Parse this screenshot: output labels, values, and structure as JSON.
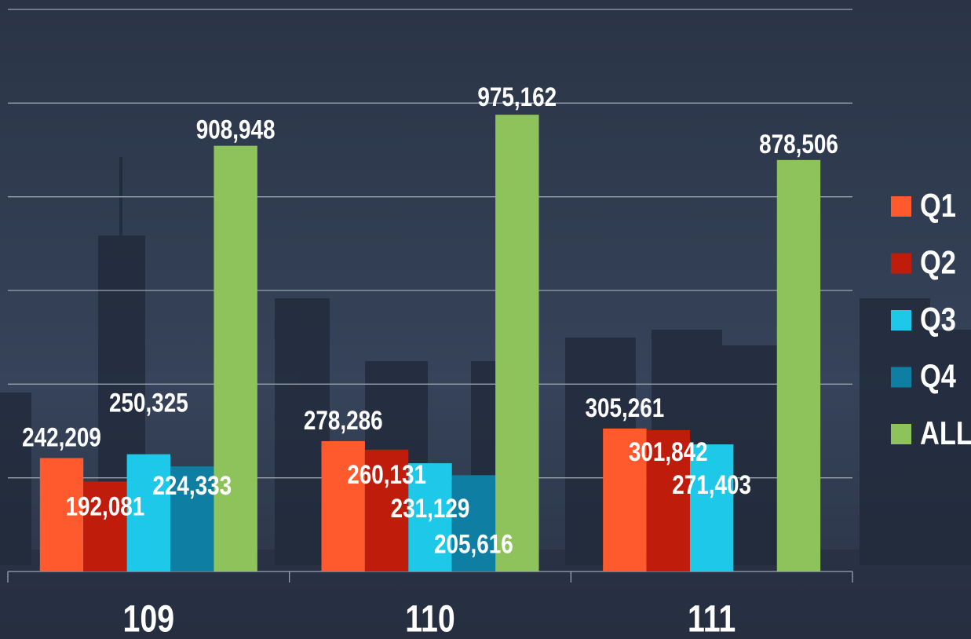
{
  "chart_data": {
    "type": "bar",
    "categories": [
      "109",
      "110",
      "111"
    ],
    "series": [
      {
        "name": "Q1",
        "color": "#ff5a2e",
        "values": [
          242209,
          278286,
          305261
        ],
        "value_labels": [
          "242,209",
          "278,286",
          "305,261"
        ]
      },
      {
        "name": "Q2",
        "color": "#c01c0c",
        "values": [
          192081,
          260131,
          301842
        ],
        "value_labels": [
          "192,081",
          "260,131",
          "301,842"
        ]
      },
      {
        "name": "Q3",
        "color": "#1ec8e8",
        "values": [
          250325,
          231129,
          271403
        ],
        "value_labels": [
          "250,325",
          "231,129",
          "271,403"
        ]
      },
      {
        "name": "Q4",
        "color": "#0e7fa3",
        "values": [
          224333,
          205616,
          null
        ],
        "value_labels": [
          "224,333",
          "205,616",
          null
        ]
      },
      {
        "name": "ALL",
        "color": "#8dc35a",
        "values": [
          908948,
          975162,
          878506
        ],
        "value_labels": [
          "908,948",
          "975,162",
          "878,506"
        ]
      }
    ],
    "ylim": [
      0,
      1200000
    ],
    "yticks": [
      0,
      200000,
      400000,
      600000,
      800000,
      1000000,
      1200000
    ],
    "grid": true,
    "legend": "right"
  }
}
